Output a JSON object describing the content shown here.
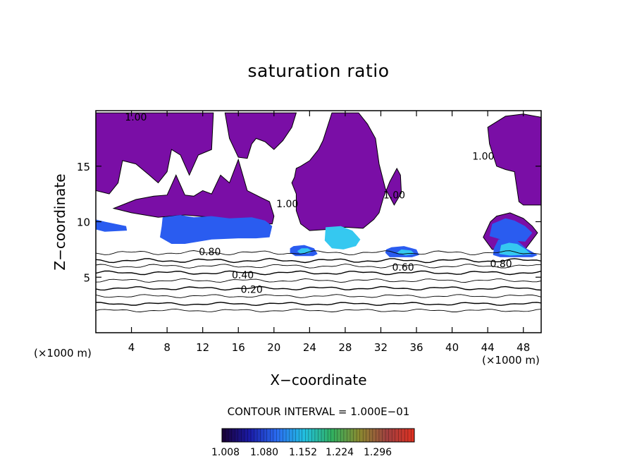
{
  "chart_data": {
    "type": "contour",
    "title": "saturation ratio",
    "xlabel": "X−coordinate",
    "ylabel": "Z−coordinate",
    "x_unit": "(×1000 m)",
    "y_unit": "(×1000 m)",
    "xlim": [
      0,
      50
    ],
    "ylim": [
      0,
      20
    ],
    "x_ticks": [
      4,
      8,
      12,
      16,
      20,
      24,
      28,
      32,
      36,
      40,
      44,
      48
    ],
    "y_ticks": [
      5,
      10,
      15
    ],
    "contour_interval_label": "CONTOUR INTERVAL = 1.000E−01",
    "contour_lines": [
      {
        "value": 0.1,
        "z": 2.0
      },
      {
        "value": 0.2,
        "z": 2.6
      },
      {
        "value": 0.3,
        "z": 3.3
      },
      {
        "value": 0.4,
        "z": 4.0
      },
      {
        "value": 0.5,
        "z": 4.7
      },
      {
        "value": 0.6,
        "z": 5.4
      },
      {
        "value": 0.7,
        "z": 6.0
      },
      {
        "value": 0.8,
        "z": 6.5
      },
      {
        "value": 0.9,
        "z": 7.2
      }
    ],
    "contour_labels": [
      {
        "text": "0.20",
        "x": 17.5,
        "z": 3.6
      },
      {
        "text": "0.40",
        "x": 16.5,
        "z": 4.9
      },
      {
        "text": "0.60",
        "x": 34.5,
        "z": 5.6
      },
      {
        "text": "0.80",
        "x": 12.8,
        "z": 7.0
      },
      {
        "text": "0.80",
        "x": 45.5,
        "z": 5.9
      },
      {
        "text": "1.00",
        "x": 4.5,
        "z": 19.1
      },
      {
        "text": "1.00",
        "x": 21.5,
        "z": 11.3
      },
      {
        "text": "1.00",
        "x": 33.5,
        "z": 12.1
      },
      {
        "text": "1.00",
        "x": 43.5,
        "z": 15.6
      }
    ],
    "colorbar": {
      "ticks": [
        "1.008",
        "1.080",
        "1.152",
        "1.224",
        "1.296"
      ],
      "colors": [
        "#1a0033",
        "#1a1aa6",
        "#2a6cf0",
        "#22c0e0",
        "#30b060",
        "#8a8a30",
        "#a04040",
        "#e03020"
      ]
    },
    "fill_colors": {
      "supersat_low": "#7a0ea6",
      "supersat_mid": "#2a5cf0",
      "supersat_high": "#35c8f0"
    },
    "supersaturated_regions": [
      {
        "level": "low",
        "poly": [
          [
            0,
            19.8
          ],
          [
            0,
            12.8
          ],
          [
            1.5,
            12.5
          ],
          [
            2.5,
            13.5
          ],
          [
            3,
            15.5
          ],
          [
            4.5,
            15.2
          ],
          [
            6,
            14.2
          ],
          [
            7,
            13.5
          ],
          [
            8,
            14.5
          ],
          [
            8.5,
            16.5
          ],
          [
            9.5,
            16
          ],
          [
            10.5,
            14.2
          ],
          [
            11.5,
            16
          ],
          [
            13,
            16.5
          ],
          [
            13.2,
            19.8
          ]
        ]
      },
      {
        "level": "low",
        "poly": [
          [
            2,
            11.2
          ],
          [
            4.5,
            12
          ],
          [
            6.5,
            12.3
          ],
          [
            8,
            12.4
          ],
          [
            9,
            14.2
          ],
          [
            10,
            12.4
          ],
          [
            11,
            12.3
          ],
          [
            12,
            12.8
          ],
          [
            13,
            12.5
          ],
          [
            14,
            14.2
          ],
          [
            15,
            13.5
          ],
          [
            16,
            15.6
          ],
          [
            17,
            12.8
          ],
          [
            18.5,
            12.2
          ],
          [
            19.5,
            11.8
          ],
          [
            20,
            10.5
          ],
          [
            19.8,
            9.8
          ],
          [
            18,
            9.8
          ],
          [
            16,
            10
          ],
          [
            13,
            10.4
          ],
          [
            10,
            10.6
          ],
          [
            7,
            10.4
          ],
          [
            4,
            10.8
          ]
        ]
      },
      {
        "level": "low",
        "poly": [
          [
            14.5,
            19.8
          ],
          [
            15,
            17.5
          ],
          [
            16,
            15.8
          ],
          [
            17,
            15.7
          ],
          [
            17.5,
            17
          ],
          [
            18,
            17.5
          ],
          [
            19,
            17.2
          ],
          [
            20,
            16.5
          ],
          [
            21,
            17.3
          ],
          [
            22,
            18.5
          ],
          [
            22.5,
            19.8
          ]
        ]
      },
      {
        "level": "low",
        "poly": [
          [
            26.5,
            19.8
          ],
          [
            25.5,
            17.3
          ],
          [
            25,
            16.5
          ],
          [
            24,
            15.5
          ],
          [
            23,
            15
          ],
          [
            22.5,
            14.8
          ],
          [
            22.3,
            14
          ],
          [
            22,
            13.5
          ],
          [
            22.5,
            12.5
          ],
          [
            22.5,
            11
          ],
          [
            23,
            9.8
          ],
          [
            24,
            9.2
          ],
          [
            26,
            9.3
          ],
          [
            28,
            9.5
          ],
          [
            30,
            9.4
          ],
          [
            31.2,
            10.2
          ],
          [
            31.8,
            10.8
          ],
          [
            32.3,
            12.2
          ],
          [
            33,
            13.6
          ],
          [
            33.8,
            14.8
          ],
          [
            34.2,
            14.2
          ],
          [
            34.3,
            12.6
          ],
          [
            33.5,
            11.5
          ],
          [
            32.5,
            13
          ],
          [
            31.8,
            15.2
          ],
          [
            31.4,
            17.5
          ],
          [
            30.5,
            18.8
          ],
          [
            29.5,
            19.8
          ]
        ]
      },
      {
        "level": "low",
        "poly": [
          [
            44,
            18.5
          ],
          [
            46,
            19.5
          ],
          [
            48,
            19.7
          ],
          [
            50,
            19.4
          ],
          [
            50,
            11.5
          ],
          [
            48,
            11.5
          ],
          [
            47.5,
            11.8
          ],
          [
            47,
            14.5
          ],
          [
            46,
            14.7
          ],
          [
            45,
            15
          ],
          [
            44.2,
            17
          ]
        ]
      },
      {
        "level": "low",
        "poly": [
          [
            43.5,
            8.6
          ],
          [
            44.3,
            10
          ],
          [
            45,
            10.5
          ],
          [
            46.5,
            10.8
          ],
          [
            48,
            10.3
          ],
          [
            49,
            9.6
          ],
          [
            49.6,
            9
          ],
          [
            48.2,
            7.5
          ],
          [
            44.5,
            7.5
          ]
        ]
      },
      {
        "level": "mid",
        "poly": [
          [
            0,
            10.2
          ],
          [
            1,
            10
          ],
          [
            3.4,
            9.6
          ],
          [
            3.5,
            9.2
          ],
          [
            1,
            9.1
          ],
          [
            0,
            9.3
          ]
        ]
      },
      {
        "level": "mid",
        "poly": [
          [
            7.5,
            10.4
          ],
          [
            9.5,
            10.6
          ],
          [
            11,
            10.4
          ],
          [
            13,
            10.5
          ],
          [
            15,
            10.3
          ],
          [
            17.5,
            10.4
          ],
          [
            19,
            10.1
          ],
          [
            19.8,
            9.6
          ],
          [
            19.5,
            8.6
          ],
          [
            18,
            8.5
          ],
          [
            16,
            8.5
          ],
          [
            13,
            8.4
          ],
          [
            10,
            8
          ],
          [
            8.5,
            8
          ],
          [
            7.2,
            8.6
          ],
          [
            7.4,
            9.6
          ]
        ]
      },
      {
        "level": "mid",
        "poly": [
          [
            44.5,
            9.8
          ],
          [
            46,
            10.3
          ],
          [
            47,
            10.1
          ],
          [
            48.2,
            9.6
          ],
          [
            49,
            9
          ],
          [
            48.2,
            8.2
          ],
          [
            45.5,
            8.4
          ],
          [
            44.2,
            8.7
          ]
        ]
      },
      {
        "level": "mid",
        "poly": [
          [
            21.8,
            7.2
          ],
          [
            21.8,
            7.6
          ],
          [
            22.2,
            7.8
          ],
          [
            23.4,
            7.9
          ],
          [
            24.5,
            7.6
          ],
          [
            24.9,
            7.1
          ],
          [
            24.4,
            6.9
          ],
          [
            22.4,
            6.9
          ]
        ]
      },
      {
        "level": "mid",
        "poly": [
          [
            32.5,
            7.2
          ],
          [
            32.6,
            7.5
          ],
          [
            33.2,
            7.7
          ],
          [
            34.6,
            7.8
          ],
          [
            36,
            7.5
          ],
          [
            36.3,
            7
          ],
          [
            35.5,
            6.8
          ],
          [
            33,
            6.8
          ]
        ]
      },
      {
        "level": "mid",
        "poly": [
          [
            44.6,
            7
          ],
          [
            44.7,
            7.6
          ],
          [
            45.2,
            8.4
          ],
          [
            46.3,
            8.5
          ],
          [
            47.3,
            8.3
          ],
          [
            48.3,
            7.6
          ],
          [
            49.6,
            7
          ],
          [
            49,
            6.8
          ],
          [
            45.4,
            6.8
          ]
        ]
      },
      {
        "level": "high",
        "poly": [
          [
            25.8,
            9.5
          ],
          [
            27.5,
            9.6
          ],
          [
            28.8,
            9.2
          ],
          [
            29.7,
            8.4
          ],
          [
            29.2,
            7.8
          ],
          [
            27.8,
            7.5
          ],
          [
            26.5,
            7.6
          ],
          [
            25.7,
            8.3
          ]
        ]
      },
      {
        "level": "high",
        "poly": [
          [
            22.6,
            7.35
          ],
          [
            23.1,
            7.6
          ],
          [
            23.8,
            7.6
          ],
          [
            24.3,
            7.35
          ],
          [
            23.9,
            7.15
          ],
          [
            22.9,
            7.15
          ]
        ]
      },
      {
        "level": "high",
        "poly": [
          [
            45.3,
            7.1
          ],
          [
            45.5,
            7.9
          ],
          [
            46.4,
            8.1
          ],
          [
            47.3,
            8
          ],
          [
            48.3,
            7.5
          ],
          [
            48.9,
            7.05
          ],
          [
            46.5,
            6.95
          ]
        ]
      },
      {
        "level": "high",
        "poly": [
          [
            33.8,
            7.2
          ],
          [
            34.3,
            7.5
          ],
          [
            35.4,
            7.4
          ],
          [
            35.8,
            7.1
          ],
          [
            34.8,
            6.95
          ]
        ]
      }
    ]
  }
}
